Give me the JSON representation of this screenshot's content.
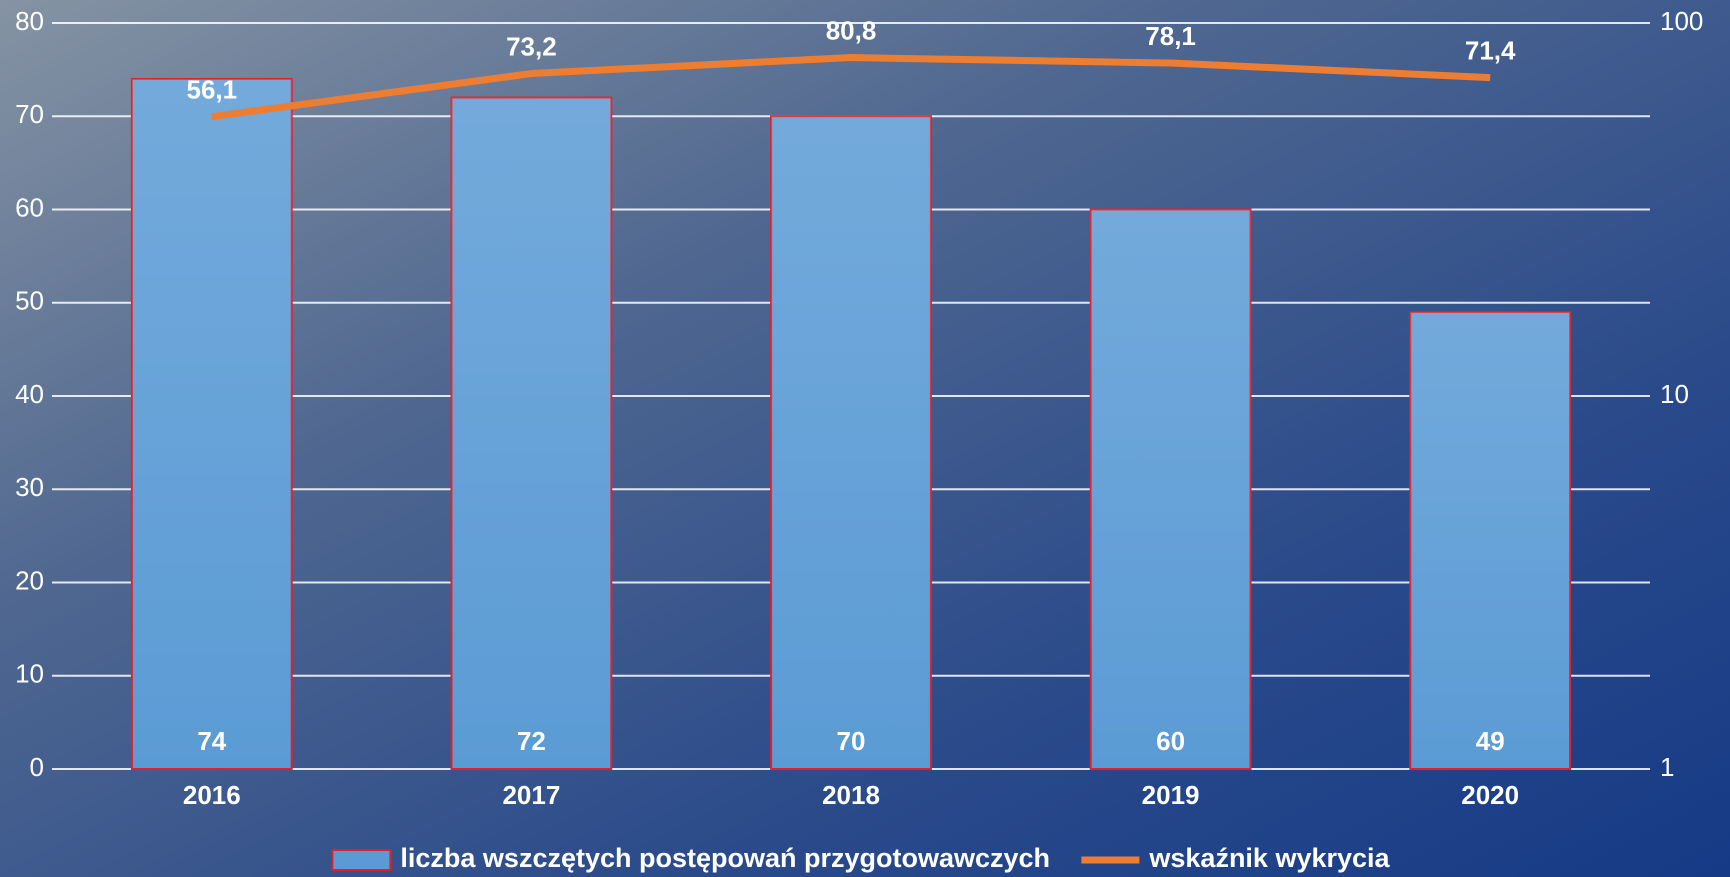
{
  "chart_data": {
    "type": "bar",
    "categories": [
      "2016",
      "2017",
      "2018",
      "2019",
      "2020"
    ],
    "series": [
      {
        "name": "liczba wszczętych postępowań przygotowawczych",
        "type": "bar",
        "color": "#5b9bd5",
        "edge_color": "#e0202a",
        "values": [
          74,
          72,
          70,
          60,
          49
        ]
      },
      {
        "name": "wskaźnik wykrycia",
        "type": "line",
        "axis": "y2",
        "color": "#ed7d31",
        "values": [
          56.1,
          73.2,
          80.8,
          78.1,
          71.4
        ],
        "value_labels": [
          "56,1",
          "73,2",
          "80,8",
          "78,1",
          "71,4"
        ]
      }
    ],
    "ylim": [
      0,
      80
    ],
    "yticks": [
      0,
      10,
      20,
      30,
      40,
      50,
      60,
      70,
      80
    ],
    "y2lim": [
      1,
      100
    ],
    "y2ticks": [
      1,
      10,
      100
    ],
    "y2scale": "log",
    "grid": true,
    "legend": "bottom"
  }
}
